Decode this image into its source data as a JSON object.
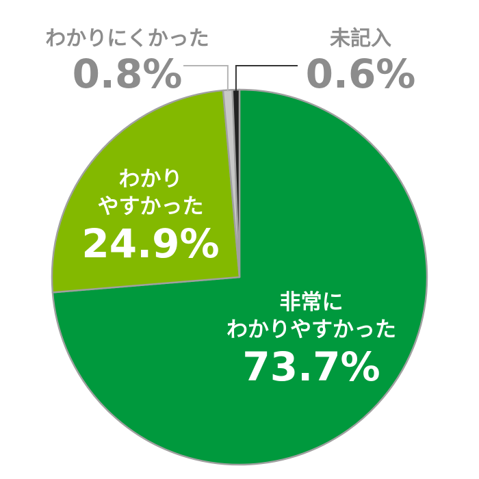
{
  "chart_data": {
    "type": "pie",
    "start": "12 o'clock",
    "direction": "clockwise",
    "slices": [
      {
        "label_lines": [
          "非常に",
          "わかりやすかった"
        ],
        "value": 73.7,
        "value_text": "73.7%",
        "color": "#00993d",
        "label_position": "inside"
      },
      {
        "label_lines": [
          "わかり",
          "やすかった"
        ],
        "value": 24.9,
        "value_text": "24.9%",
        "color": "#83b900",
        "label_position": "inside"
      },
      {
        "label_lines": [
          "わかりにくかった"
        ],
        "value": 0.8,
        "value_text": "0.8%",
        "color": "#c8c8c8",
        "label_position": "outside-left"
      },
      {
        "label_lines": [
          "未記入"
        ],
        "value": 0.6,
        "value_text": "0.6%",
        "color": "#222222",
        "label_position": "outside-right"
      }
    ],
    "slice_border_color": "#a0a0a0",
    "inside_label_color": "#ffffff",
    "outside_label_color": "#8c8c8c"
  }
}
